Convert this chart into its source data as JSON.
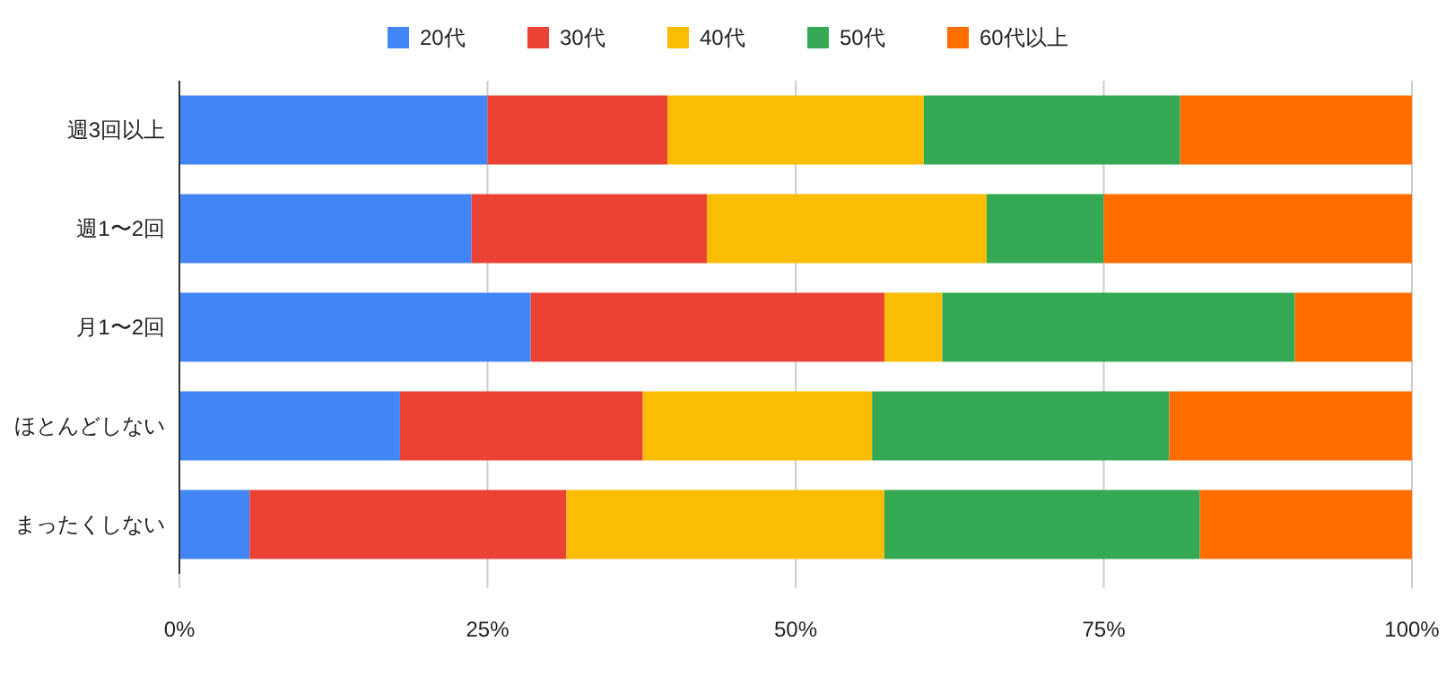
{
  "chart_data": {
    "type": "bar",
    "orientation": "horizontal",
    "stacked": true,
    "categories": [
      "週3回以上",
      "週1〜2回",
      "月1〜2回",
      "ほとんどしない",
      "まったくしない"
    ],
    "series": [
      {
        "name": "20代",
        "color": "#4285f4",
        "values": [
          25.0,
          23.7,
          28.5,
          17.9,
          5.7
        ]
      },
      {
        "name": "30代",
        "color": "#ea4335",
        "values": [
          14.6,
          19.1,
          28.7,
          19.7,
          25.7
        ]
      },
      {
        "name": "40代",
        "color": "#fbbc04",
        "values": [
          20.8,
          22.7,
          4.7,
          18.6,
          25.8
        ]
      },
      {
        "name": "50代",
        "color": "#34a853",
        "values": [
          20.8,
          9.5,
          28.6,
          24.1,
          25.6
        ]
      },
      {
        "name": "60代以上",
        "color": "#ff6d01",
        "values": [
          18.8,
          25.0,
          9.5,
          19.7,
          17.2
        ]
      }
    ],
    "xlim": [
      0,
      100
    ],
    "xticks": [
      {
        "value": 0,
        "label": "0%"
      },
      {
        "value": 25,
        "label": "25%"
      },
      {
        "value": 50,
        "label": "50%"
      },
      {
        "value": 75,
        "label": "75%"
      },
      {
        "value": 100,
        "label": "100%"
      }
    ],
    "grid": "x",
    "legend": "top"
  }
}
